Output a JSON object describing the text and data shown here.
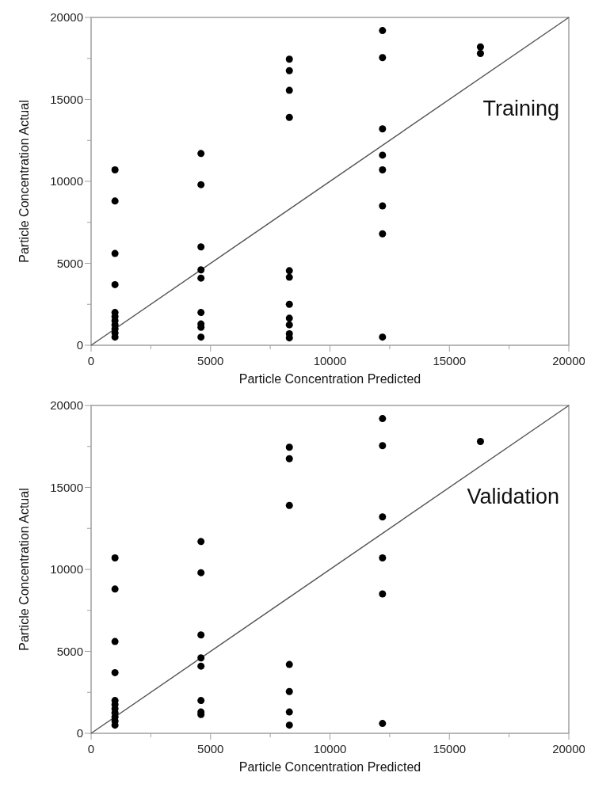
{
  "chart_data": [
    {
      "type": "scatter",
      "xlabel": "Particle Concentration Predicted",
      "ylabel": "Particle Concentration Actual",
      "annotations": [
        "Training"
      ],
      "xlim": [
        0,
        20000
      ],
      "ylim": [
        0,
        20000
      ],
      "xticks": [
        0,
        {
          "value": 2500,
          "label": null
        },
        5000,
        {
          "value": 7500,
          "label": null
        },
        10000,
        {
          "value": 12500,
          "label": null
        },
        15000,
        {
          "value": 17500,
          "label": null
        },
        20000
      ],
      "yticks": [
        0,
        {
          "value": 2500,
          "label": null
        },
        5000,
        {
          "value": 7500,
          "label": null
        },
        10000,
        {
          "value": 12500,
          "label": null
        },
        15000,
        {
          "value": 17500,
          "label": null
        },
        20000
      ],
      "marker": "circle",
      "grid": false,
      "series": [
        {
          "type": "line",
          "marker": "none",
          "color": "#555555",
          "x": [
            0,
            20000
          ],
          "values": [
            0,
            20000
          ]
        },
        {
          "color": "#000000",
          "x": [
            1000,
            1000,
            1000,
            1000,
            1000,
            1000,
            1000,
            1000,
            1000,
            1000,
            1000,
            4600,
            4600,
            4600,
            4600,
            4600,
            4600,
            4600,
            4600,
            4600,
            8300,
            8300,
            8300,
            8300,
            8300,
            8300,
            8300,
            8300,
            8300,
            8300,
            8300,
            12200,
            12200,
            12200,
            12200,
            12200,
            12200,
            12200,
            12200,
            16300,
            16300
          ],
          "values": [
            10700,
            8800,
            5600,
            3700,
            2000,
            1750,
            1500,
            1250,
            1000,
            750,
            500,
            11700,
            9800,
            6000,
            4600,
            4100,
            2000,
            1300,
            1100,
            500,
            17450,
            16750,
            15550,
            13900,
            4550,
            4150,
            2500,
            1650,
            1250,
            700,
            450,
            19200,
            17550,
            13200,
            11600,
            10700,
            8500,
            6800,
            500,
            18200,
            17800
          ]
        }
      ]
    },
    {
      "type": "scatter",
      "xlabel": "Particle Concentration Predicted",
      "ylabel": "Particle Concentration Actual",
      "annotations": [
        "Validation"
      ],
      "xlim": [
        0,
        20000
      ],
      "ylim": [
        0,
        20000
      ],
      "xticks": [
        0,
        {
          "value": 2500,
          "label": null
        },
        5000,
        {
          "value": 7500,
          "label": null
        },
        10000,
        {
          "value": 12500,
          "label": null
        },
        15000,
        {
          "value": 17500,
          "label": null
        },
        20000
      ],
      "yticks": [
        0,
        {
          "value": 2500,
          "label": null
        },
        5000,
        {
          "value": 7500,
          "label": null
        },
        10000,
        {
          "value": 12500,
          "label": null
        },
        15000,
        {
          "value": 17500,
          "label": null
        },
        20000
      ],
      "marker": "circle",
      "grid": false,
      "series": [
        {
          "type": "line",
          "marker": "none",
          "color": "#555555",
          "x": [
            0,
            20000
          ],
          "values": [
            0,
            20000
          ]
        },
        {
          "color": "#000000",
          "x": [
            1000,
            1000,
            1000,
            1000,
            1000,
            1000,
            1000,
            1000,
            1000,
            1000,
            1000,
            4600,
            4600,
            4600,
            4600,
            4600,
            4600,
            4600,
            4600,
            8300,
            8300,
            8300,
            8300,
            8300,
            8300,
            8300,
            12200,
            12200,
            12200,
            12200,
            12200,
            12200,
            16300
          ],
          "values": [
            10700,
            8800,
            5600,
            3700,
            2000,
            1750,
            1500,
            1250,
            1000,
            750,
            500,
            11700,
            9800,
            6000,
            4600,
            4100,
            2000,
            1300,
            1150,
            17450,
            16750,
            13900,
            4200,
            2550,
            1300,
            500,
            19200,
            17550,
            13200,
            10700,
            8500,
            600,
            17800
          ]
        }
      ]
    }
  ]
}
